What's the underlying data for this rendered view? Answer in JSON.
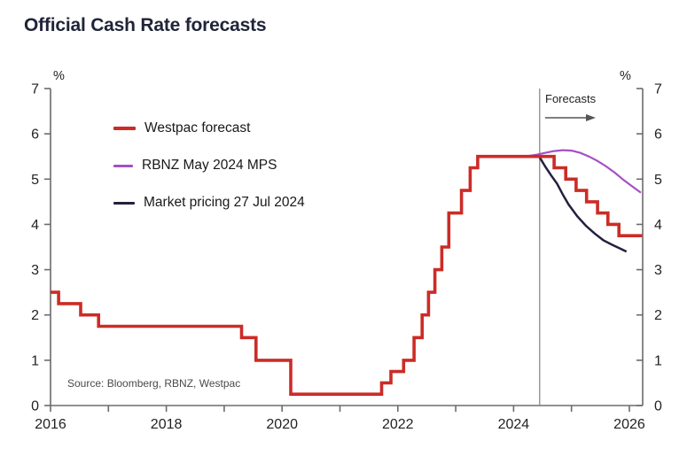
{
  "title": "Official Cash Rate forecasts",
  "source": "Source: Bloomberg, RBNZ, Westpac",
  "annotation": {
    "label": "Forecasts"
  },
  "colors": {
    "title_text": "#1f2438",
    "axis": "#6b6b6b",
    "tick_label": "#222222",
    "divider": "#8a8a8a",
    "arrow": "#555555",
    "source_text": "#4a4a4a"
  },
  "chart_data": {
    "type": "line",
    "title": "Official Cash Rate forecasts",
    "xlabel": "",
    "ylabel": "%",
    "y_unit": "%",
    "xlim": [
      2016,
      2026.23
    ],
    "ylim": [
      0,
      7
    ],
    "x_ticks": [
      2016,
      2017,
      2018,
      2019,
      2020,
      2021,
      2022,
      2023,
      2024,
      2025,
      2026
    ],
    "x_tick_labels": [
      "2016",
      "",
      "2018",
      "",
      "2020",
      "",
      "2022",
      "",
      "2024",
      "",
      "2026"
    ],
    "y_ticks": [
      0,
      1,
      2,
      3,
      4,
      5,
      6,
      7
    ],
    "grid": false,
    "legend_position": "top-left-inside",
    "forecast_divider_x": 2024.45,
    "series": [
      {
        "name": "Westpac forecast",
        "color": "#cb2c27",
        "style": "step",
        "width": 3.6,
        "x_end": 2026.22,
        "points": [
          [
            2016.0,
            2.5
          ],
          [
            2016.14,
            2.25
          ],
          [
            2016.52,
            2.0
          ],
          [
            2016.83,
            1.75
          ],
          [
            2019.3,
            1.5
          ],
          [
            2019.55,
            1.0
          ],
          [
            2020.15,
            0.25
          ],
          [
            2021.72,
            0.5
          ],
          [
            2021.88,
            0.75
          ],
          [
            2022.1,
            1.0
          ],
          [
            2022.28,
            1.5
          ],
          [
            2022.42,
            2.0
          ],
          [
            2022.53,
            2.5
          ],
          [
            2022.64,
            3.0
          ],
          [
            2022.76,
            3.5
          ],
          [
            2022.88,
            4.25
          ],
          [
            2023.1,
            4.75
          ],
          [
            2023.25,
            5.25
          ],
          [
            2023.38,
            5.5
          ],
          [
            2024.7,
            5.25
          ],
          [
            2024.9,
            5.0
          ],
          [
            2025.08,
            4.75
          ],
          [
            2025.26,
            4.5
          ],
          [
            2025.45,
            4.25
          ],
          [
            2025.63,
            4.0
          ],
          [
            2025.82,
            3.75
          ]
        ]
      },
      {
        "name": "RBNZ May 2024 MPS",
        "color": "#a44fc6",
        "style": "line",
        "width": 2.2,
        "points": [
          [
            2024.2,
            5.5
          ],
          [
            2024.4,
            5.54
          ],
          [
            2024.55,
            5.58
          ],
          [
            2024.7,
            5.62
          ],
          [
            2024.85,
            5.64
          ],
          [
            2025.0,
            5.63
          ],
          [
            2025.15,
            5.58
          ],
          [
            2025.3,
            5.5
          ],
          [
            2025.45,
            5.4
          ],
          [
            2025.6,
            5.28
          ],
          [
            2025.75,
            5.14
          ],
          [
            2025.9,
            4.98
          ],
          [
            2026.05,
            4.84
          ],
          [
            2026.2,
            4.7
          ]
        ]
      },
      {
        "name": "Market pricing 27 Jul 2024",
        "color": "#23203f",
        "style": "line",
        "width": 2.5,
        "points": [
          [
            2024.45,
            5.48
          ],
          [
            2024.55,
            5.27
          ],
          [
            2024.65,
            5.08
          ],
          [
            2024.75,
            4.9
          ],
          [
            2024.85,
            4.66
          ],
          [
            2024.95,
            4.44
          ],
          [
            2025.1,
            4.18
          ],
          [
            2025.25,
            3.97
          ],
          [
            2025.4,
            3.8
          ],
          [
            2025.55,
            3.65
          ],
          [
            2025.7,
            3.55
          ],
          [
            2025.85,
            3.46
          ],
          [
            2025.95,
            3.4
          ]
        ]
      }
    ]
  }
}
